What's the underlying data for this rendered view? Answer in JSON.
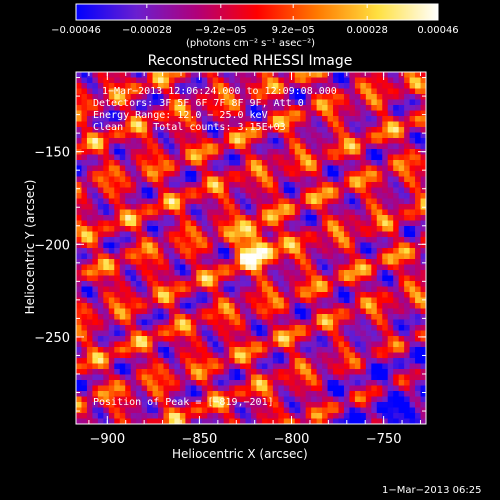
{
  "colorbar": {
    "tick_labels": [
      "−0.00046",
      "−0.00028",
      "−9.2e−05",
      "9.2e−05",
      "0.00028",
      "0.00046"
    ],
    "tick_values": [
      -0.00046,
      -0.00028,
      -9.2e-05,
      9.2e-05,
      0.00028,
      0.00046
    ],
    "range": [
      -0.00046,
      0.00046
    ],
    "units": "(photons cm⁻² s⁻¹ asec⁻²)",
    "colormap": [
      "#0000ff",
      "#6a1fd0",
      "#b0007a",
      "#ff0000",
      "#ff7a00",
      "#ffe040",
      "#ffffff"
    ]
  },
  "chart_data": {
    "type": "heatmap",
    "title": "Reconstructed RHESSI Image",
    "xlabel": "Heliocentric X (arcsec)",
    "ylabel": "Heliocentric Y (arcsec)",
    "xlim": [
      -917,
      -727
    ],
    "ylim": [
      -297,
      -107
    ],
    "x_ticks": [
      -900,
      -850,
      -800,
      -750
    ],
    "y_ticks": [
      -150,
      -200,
      -250
    ],
    "x_tick_labels": [
      "−900",
      "−850",
      "−800",
      "−750"
    ],
    "y_tick_labels": [
      "−150",
      "−200",
      "−250"
    ],
    "peak": [
      -819,
      -201
    ],
    "annotations": {
      "time_range": "1−Mar−2013 12:06:24.000 to 12:09:08.000",
      "detectors": "Detectors: 3F 5F 6F 7F 8F 9F, Att 0",
      "energy": "Energy Range: 12.0 − 25.0 keV",
      "clean": "Clean     Total counts: 3.15E+03",
      "peak_label": "Position of Peak = [−819,−201]"
    }
  },
  "footer_timestamp": "1−Mar−2013 06:25"
}
